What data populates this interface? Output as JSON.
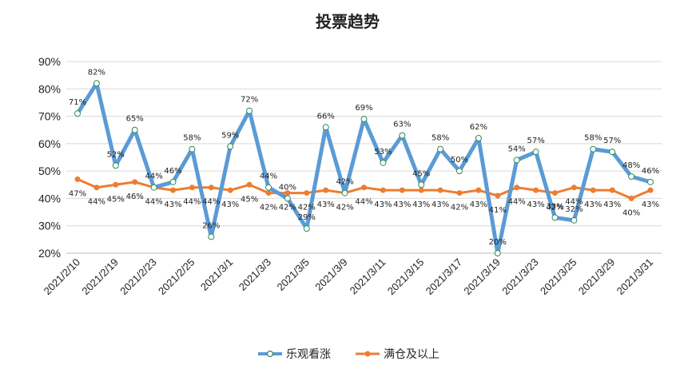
{
  "chart_data": {
    "type": "line",
    "title": "投票趋势",
    "xlabel": "",
    "ylabel": "",
    "ylim": [
      20,
      90
    ],
    "yticks": [
      "20%",
      "30%",
      "40%",
      "50%",
      "60%",
      "70%",
      "80%",
      "90%"
    ],
    "ytick_values": [
      20,
      30,
      40,
      50,
      60,
      70,
      80,
      90
    ],
    "xtick_labels": [
      "2021/2/10",
      "2021/2/19",
      "2021/2/23",
      "2021/2/25",
      "2021/3/1",
      "2021/3/3",
      "2021/3/5",
      "2021/3/9",
      "2021/3/11",
      "2021/3/15",
      "2021/3/17",
      "2021/3/19",
      "2021/3/23",
      "2021/3/25",
      "2021/3/29",
      "2021/3/31"
    ],
    "grid": true,
    "legend_position": "bottom",
    "series": [
      {
        "name": "乐观看涨",
        "color": "#5B9BD5",
        "marker": "open-circle",
        "values": [
          71,
          82,
          52,
          65,
          44,
          46,
          58,
          26,
          59,
          72,
          44,
          40,
          29,
          66,
          42,
          69,
          53,
          63,
          45,
          58,
          50,
          62,
          20,
          54,
          57,
          33,
          32,
          58,
          57,
          48,
          46
        ],
        "labels": [
          "71%",
          "82%",
          "52%",
          "65%",
          "44%",
          "46%",
          "58%",
          "26%",
          "59%",
          "72%",
          "44%",
          "40%",
          "29%",
          "66%",
          "42%",
          "69%",
          "53%",
          "63%",
          "45%",
          "58%",
          "50%",
          "62%",
          "20%",
          "54%",
          "57%",
          "33%",
          "32%",
          "58%",
          "57%",
          "48%",
          "46%"
        ]
      },
      {
        "name": "满仓及以上",
        "color": "#ED7D31",
        "marker": "filled-circle",
        "values": [
          47,
          44,
          45,
          46,
          44,
          43,
          44,
          44,
          43,
          45,
          42,
          42,
          42,
          43,
          42,
          44,
          43,
          43,
          43,
          43,
          42,
          43,
          41,
          44,
          43,
          42,
          44,
          43,
          43,
          40,
          43
        ],
        "labels": [
          "47%",
          "44%",
          "45%",
          "46%",
          "44%",
          "43%",
          "44%",
          "44%",
          "43%",
          "45%",
          "42%",
          "42%",
          "42%",
          "43%",
          "42%",
          "44%",
          "43%",
          "43%",
          "43%",
          "43%",
          "42%",
          "43%",
          "41%",
          "44%",
          "43%",
          "42%",
          "44%",
          "43%",
          "43%",
          "40%",
          "43%"
        ]
      }
    ]
  }
}
